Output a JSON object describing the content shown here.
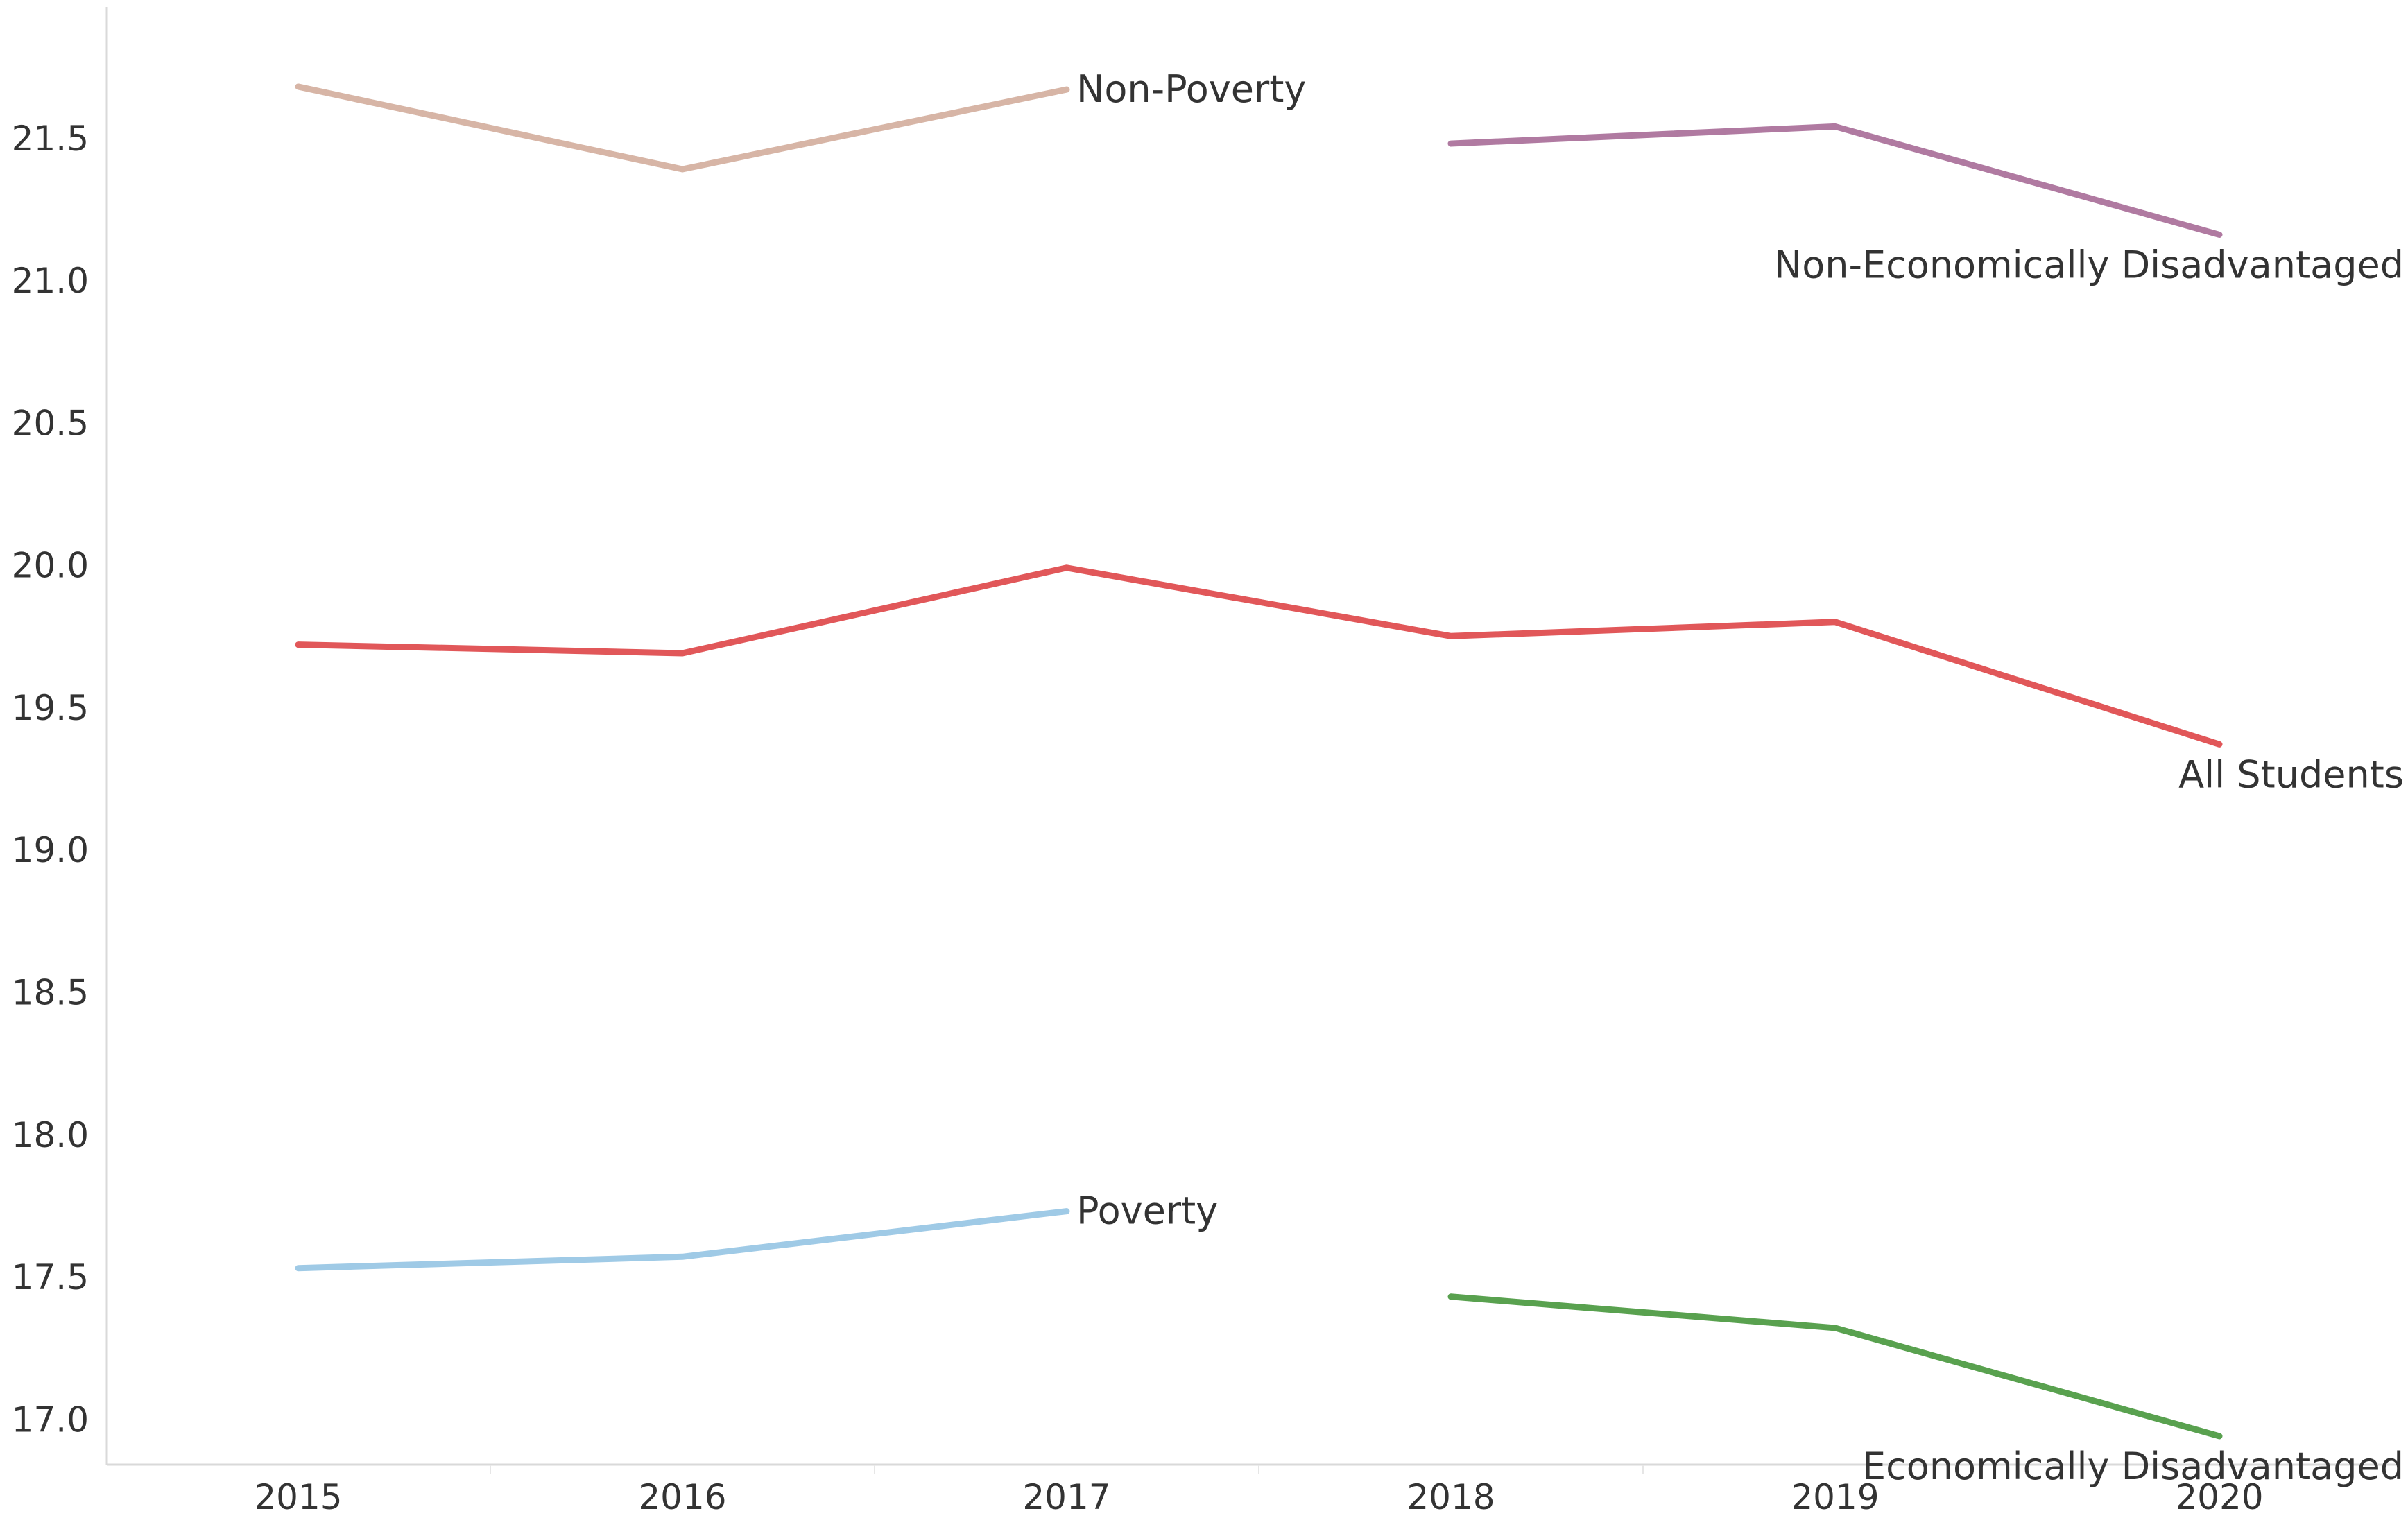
{
  "chart_data": {
    "type": "line",
    "title": "",
    "xlabel": "",
    "ylabel": "",
    "categories": [
      "2015",
      "2016",
      "2017",
      "2018",
      "2019",
      "2020"
    ],
    "ylim": [
      16.84,
      21.96
    ],
    "yticks": [
      "17.0",
      "17.5",
      "18.0",
      "18.5",
      "19.0",
      "19.5",
      "20.0",
      "20.5",
      "21.0",
      "21.5"
    ],
    "grid": false,
    "legend": "none",
    "series": [
      {
        "name": "Non-Poverty",
        "color": "#d7b5a6",
        "values": [
          21.68,
          21.39,
          21.67,
          null,
          null,
          null
        ]
      },
      {
        "name": "Non-Economically Disadvantaged",
        "color": "#b07aa1",
        "values": [
          null,
          null,
          null,
          21.48,
          21.54,
          21.16
        ]
      },
      {
        "name": "All Students",
        "color": "#e15759",
        "values": [
          19.72,
          19.69,
          19.99,
          19.75,
          19.8,
          19.37
        ]
      },
      {
        "name": "Poverty",
        "color": "#9fcae6",
        "values": [
          17.53,
          17.57,
          17.73,
          null,
          null,
          null
        ]
      },
      {
        "name": "Economically Disadvantaged",
        "color": "#59a14f",
        "values": [
          null,
          null,
          null,
          17.43,
          17.32,
          16.94
        ]
      }
    ]
  }
}
